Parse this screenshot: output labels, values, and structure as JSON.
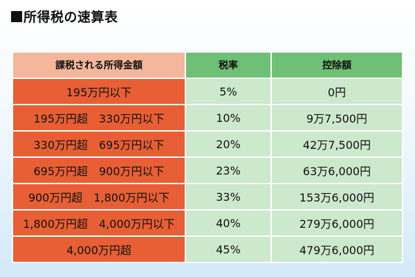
{
  "title": "所得税の速算表",
  "table": {
    "headers": {
      "income": "課税される所得金額",
      "rate": "税率",
      "deduction": "控除額"
    },
    "rows": [
      {
        "income": "195万円以下",
        "rate": "5%",
        "deduction": "0円"
      },
      {
        "income": "195万円超　330万円以下",
        "rate": "10%",
        "deduction": "9万7,500円"
      },
      {
        "income": "330万円超　695万円以下",
        "rate": "20%",
        "deduction": "42万7,500円"
      },
      {
        "income": "695万円超　900万円以下",
        "rate": "23%",
        "deduction": "63万6,000円"
      },
      {
        "income": "900万円超　1,800万円以下",
        "rate": "33%",
        "deduction": "153万6,000円"
      },
      {
        "income": "1,800万円超　4,000万円以下",
        "rate": "40%",
        "deduction": "279万6,000円"
      },
      {
        "income": "4,000万円超",
        "rate": "45%",
        "deduction": "479万6,000円"
      }
    ]
  },
  "colors": {
    "income_header": "#f4b79c",
    "income_cell": "#e85f35",
    "rate_header": "#6fbf76",
    "rate_cell": "#cce8cd"
  }
}
